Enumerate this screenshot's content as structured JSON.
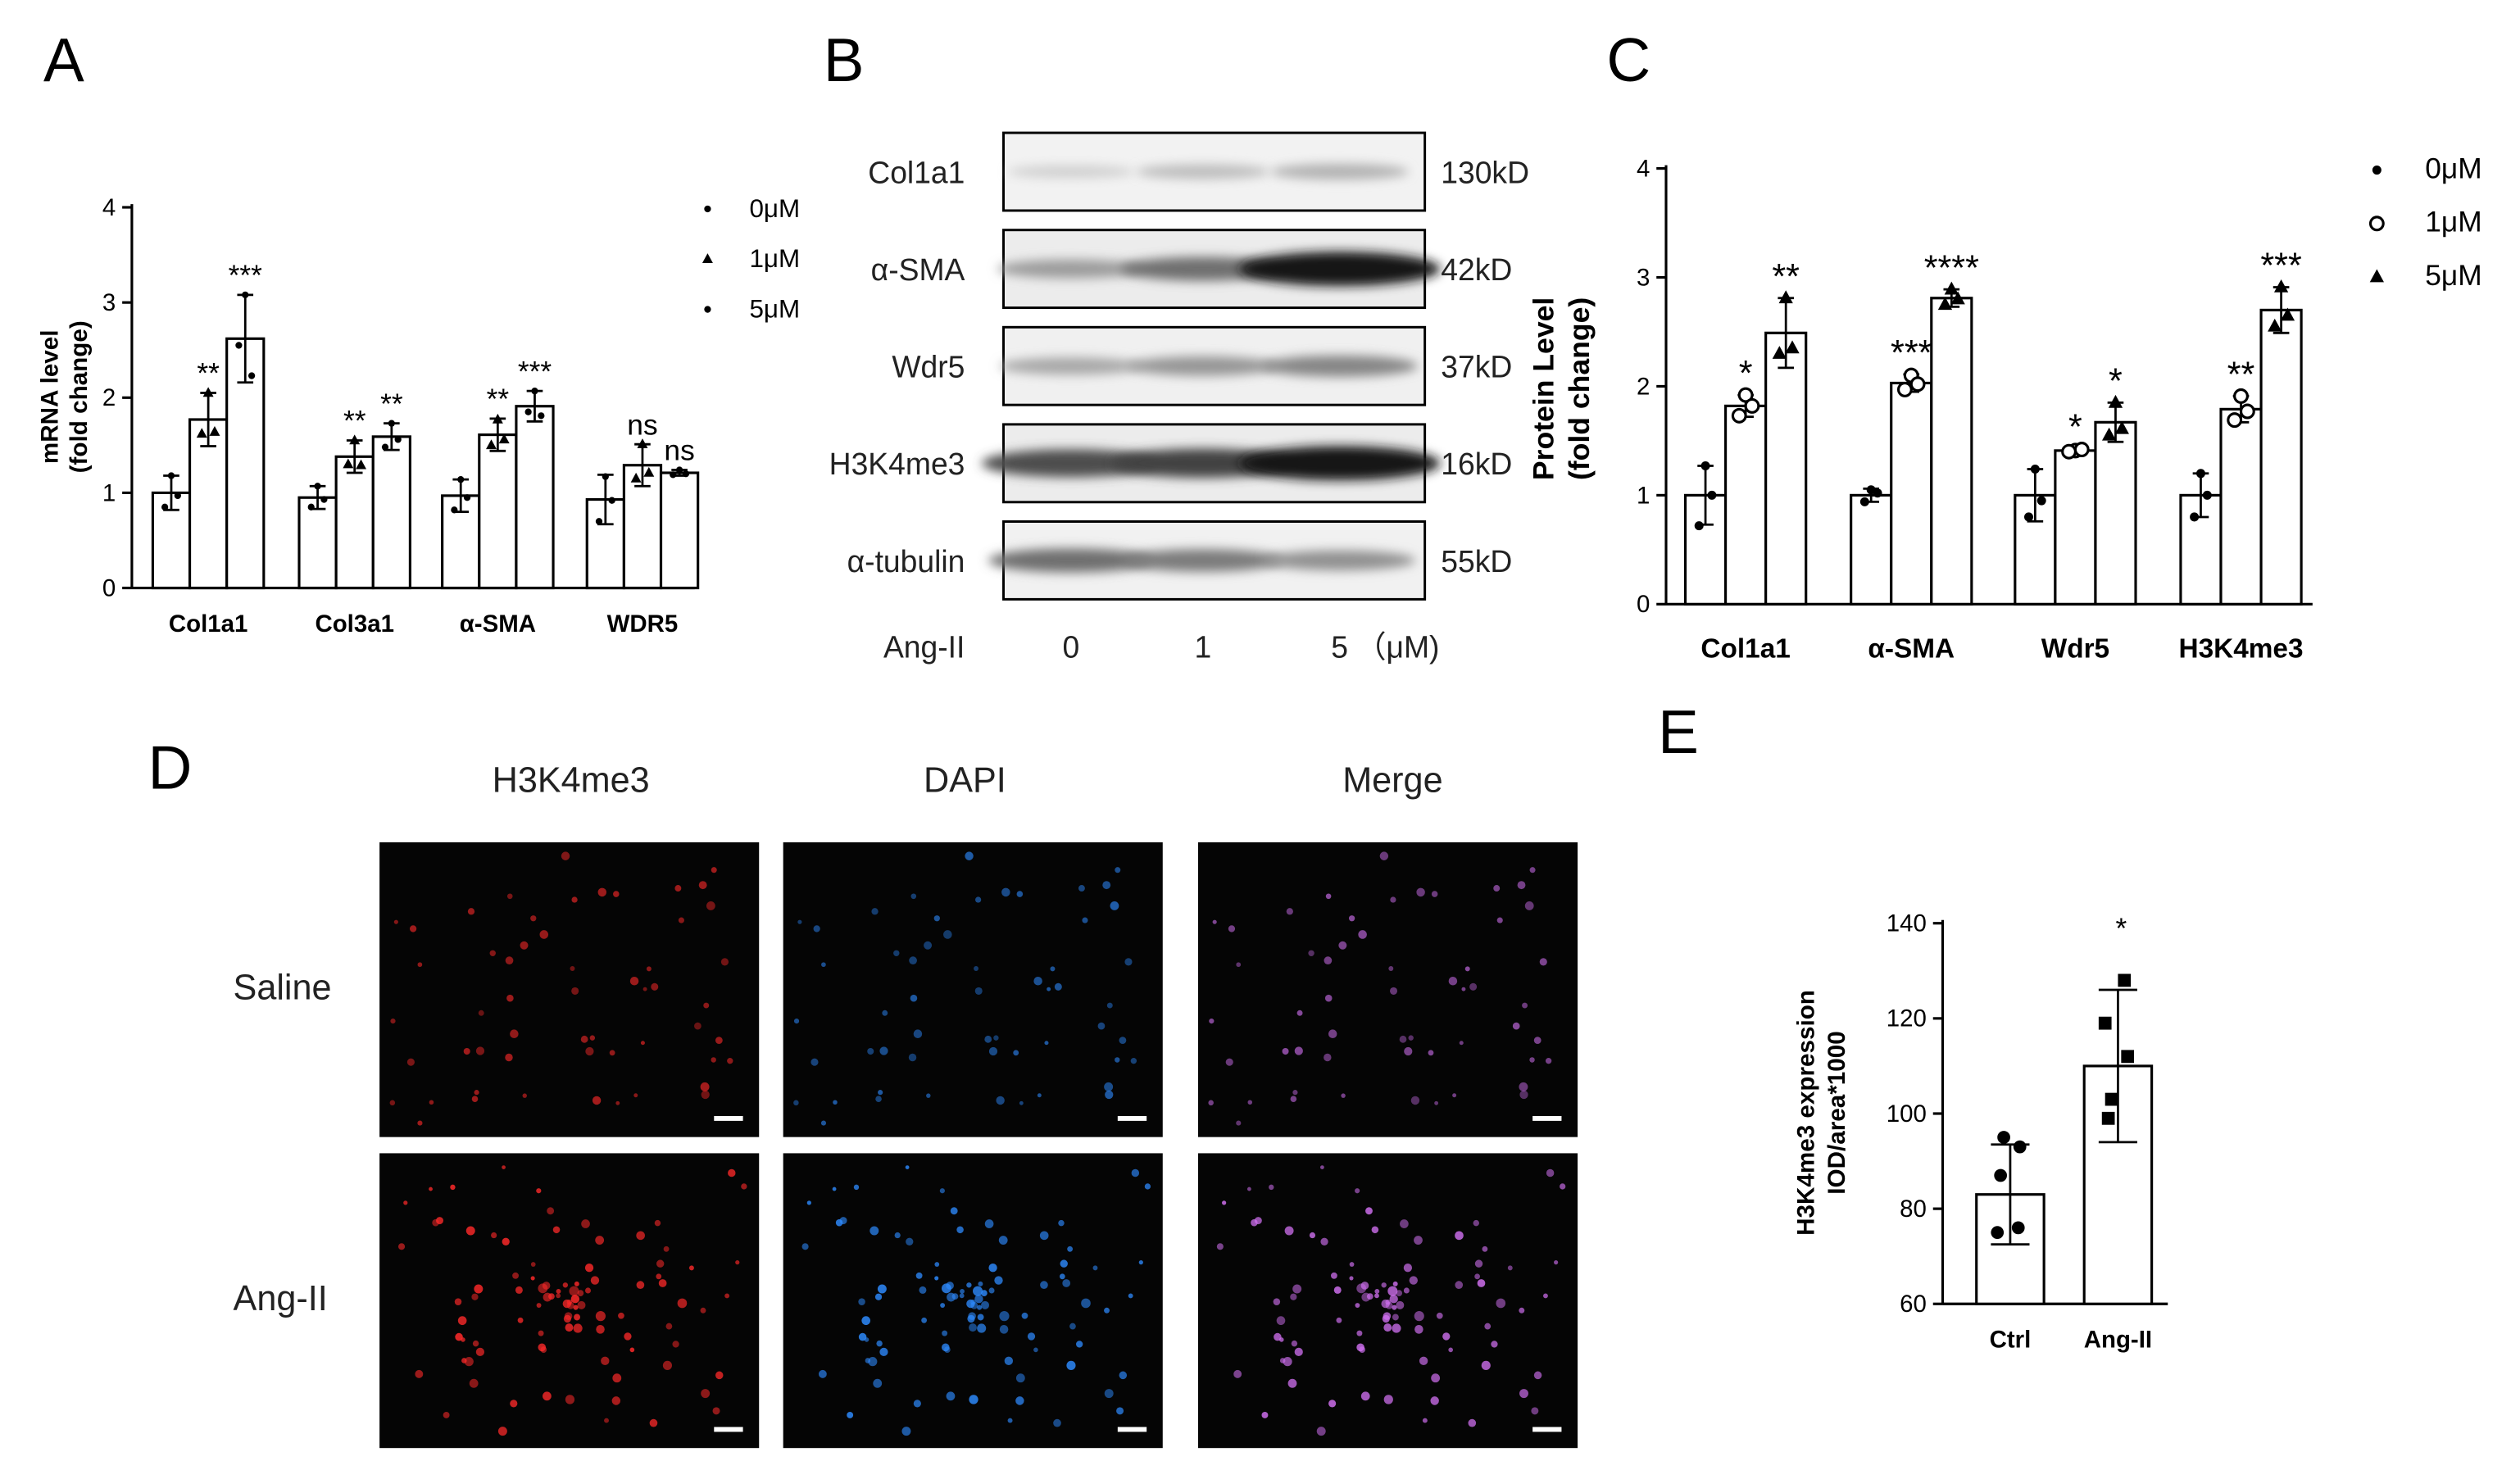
{
  "panels": {
    "A": "A",
    "B": "B",
    "C": "C",
    "D": "D",
    "E": "E"
  },
  "colors": {
    "ink": "#000000",
    "bar_fill": "#ffffff",
    "red_channel": "#ff2a2a",
    "blue_channel": "#2e8bff",
    "merge_channel": "#d070f0"
  },
  "chart_data": [
    {
      "id": "A",
      "type": "bar",
      "ylabel": "mRNA level\n(fold change)",
      "ylim": [
        0,
        4
      ],
      "yticks": [
        0,
        1,
        2,
        3,
        4
      ],
      "categories": [
        "Col1a1",
        "Col3a1",
        "α-SMA",
        "WDR5"
      ],
      "legend": {
        "placement": "top-right",
        "entries": [
          "0μM",
          "1μM",
          "5μM"
        ]
      },
      "series": [
        {
          "name": "0μM",
          "values": [
            1.0,
            0.95,
            0.97,
            0.93
          ],
          "sd": [
            0.18,
            0.12,
            0.17,
            0.26
          ],
          "points": [
            [
              1.18,
              0.85,
              0.97
            ],
            [
              1.07,
              0.85,
              0.93
            ],
            [
              1.14,
              0.82,
              0.95
            ],
            [
              1.17,
              0.7,
              0.92
            ]
          ]
        },
        {
          "name": "1μM",
          "values": [
            1.77,
            1.38,
            1.61,
            1.29
          ],
          "sd": [
            0.28,
            0.17,
            0.17,
            0.22
          ],
          "points": [
            [
              2.05,
              1.62,
              1.64
            ],
            [
              1.55,
              1.3,
              1.29
            ],
            [
              1.77,
              1.5,
              1.56
            ],
            [
              1.51,
              1.15,
              1.21
            ]
          ]
        },
        {
          "name": "5μM",
          "values": [
            2.62,
            1.59,
            1.91,
            1.21
          ],
          "sd": [
            0.46,
            0.14,
            0.16,
            0.03
          ],
          "points": [
            [
              3.08,
              2.55,
              2.23
            ],
            [
              1.73,
              1.48,
              1.56
            ],
            [
              2.07,
              1.85,
              1.81
            ],
            [
              1.24,
              1.19,
              1.2
            ]
          ]
        }
      ],
      "significance": [
        [
          "",
          "**",
          "***"
        ],
        [
          "",
          "**",
          "**"
        ],
        [
          "",
          "**",
          "***"
        ],
        [
          "",
          "ns",
          "ns"
        ]
      ]
    },
    {
      "id": "C",
      "type": "bar",
      "ylabel": "Protein Level\n(fold change)",
      "ylim": [
        0,
        4
      ],
      "yticks": [
        0,
        1,
        2,
        3,
        4
      ],
      "categories": [
        "Col1a1",
        "α-SMA",
        "Wdr5",
        "H3K4me3"
      ],
      "legend": {
        "placement": "top-right",
        "entries": [
          "0μM",
          "1μM",
          "5μM"
        ]
      },
      "series": [
        {
          "name": "0μM",
          "values": [
            1.0,
            1.0,
            1.0,
            1.0
          ],
          "sd": [
            0.27,
            0.06,
            0.24,
            0.2
          ],
          "points": [
            [
              1.27,
              0.72,
              1.0
            ],
            [
              1.05,
              0.94,
              1.02
            ],
            [
              1.24,
              0.8,
              0.95
            ],
            [
              1.2,
              0.8,
              1.0
            ]
          ]
        },
        {
          "name": "1μM",
          "values": [
            1.82,
            2.03,
            1.41,
            1.79
          ],
          "sd": [
            0.1,
            0.08,
            0.02,
            0.12
          ],
          "points": [
            [
              1.92,
              1.73,
              1.82
            ],
            [
              2.1,
              1.97,
              2.02
            ],
            [
              1.41,
              1.4,
              1.42
            ],
            [
              1.91,
              1.69,
              1.77
            ]
          ]
        },
        {
          "name": "5μM",
          "values": [
            2.49,
            2.81,
            1.67,
            2.7
          ],
          "sd": [
            0.32,
            0.08,
            0.18,
            0.21
          ],
          "points": [
            [
              2.81,
              2.3,
              2.35
            ],
            [
              2.89,
              2.75,
              2.8
            ],
            [
              1.85,
              1.55,
              1.61
            ],
            [
              2.91,
              2.55,
              2.65
            ]
          ]
        }
      ],
      "significance": [
        [
          "",
          "*",
          "**"
        ],
        [
          "",
          "***",
          "****"
        ],
        [
          "",
          "*",
          "*"
        ],
        [
          "",
          "**",
          "***"
        ]
      ]
    },
    {
      "id": "E",
      "type": "bar",
      "ylabel": "H3K4me3 expression\nIOD/area*1000",
      "ylim": [
        60,
        140
      ],
      "yticks": [
        60,
        80,
        100,
        120,
        140
      ],
      "categories": [
        "Ctrl",
        "Ang-II"
      ],
      "series": [
        {
          "name": "",
          "values": [
            83,
            110
          ],
          "sd": [
            10.5,
            16
          ],
          "points": [
            [
              95,
              93,
              87,
              76,
              75
            ],
            [
              128,
              119,
              112,
              103,
              99
            ]
          ]
        }
      ],
      "significance": [
        "",
        "*"
      ]
    }
  ],
  "western_blot": {
    "bands": [
      {
        "label": "Col1a1",
        "size": "130kD",
        "intensity": [
          0.12,
          0.2,
          0.25
        ]
      },
      {
        "label": "α-SMA",
        "size": "42kD",
        "intensity": [
          0.35,
          0.55,
          0.95
        ]
      },
      {
        "label": "Wdr5",
        "size": "37kD",
        "intensity": [
          0.3,
          0.38,
          0.45
        ]
      },
      {
        "label": "H3K4me3",
        "size": "16kD",
        "intensity": [
          0.7,
          0.75,
          0.95
        ]
      },
      {
        "label": "α-tubulin",
        "size": "55kD",
        "intensity": [
          0.55,
          0.5,
          0.4
        ]
      }
    ],
    "treatment_label": "Ang-II",
    "doses": [
      "0",
      "1",
      "5"
    ],
    "unit": "（μM)"
  },
  "fluorescence": {
    "columns": [
      "H3K4me3",
      "DAPI",
      "Merge"
    ],
    "rows": [
      "Saline",
      "Ang-II"
    ]
  }
}
